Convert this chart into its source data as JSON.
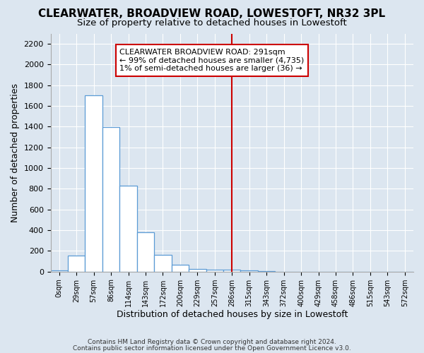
{
  "title": "CLEARWATER, BROADVIEW ROAD, LOWESTOFT, NR32 3PL",
  "subtitle": "Size of property relative to detached houses in Lowestoft",
  "xlabel": "Distribution of detached houses by size in Lowestoft",
  "ylabel": "Number of detached properties",
  "footer1": "Contains HM Land Registry data © Crown copyright and database right 2024.",
  "footer2": "Contains public sector information licensed under the Open Government Licence v3.0.",
  "bin_labels": [
    "0sqm",
    "29sqm",
    "57sqm",
    "86sqm",
    "114sqm",
    "143sqm",
    "172sqm",
    "200sqm",
    "229sqm",
    "257sqm",
    "286sqm",
    "315sqm",
    "343sqm",
    "372sqm",
    "400sqm",
    "429sqm",
    "458sqm",
    "486sqm",
    "515sqm",
    "543sqm",
    "572sqm"
  ],
  "bar_values": [
    15,
    155,
    1700,
    1395,
    830,
    380,
    160,
    65,
    25,
    20,
    20,
    15,
    5,
    0,
    0,
    0,
    0,
    0,
    0,
    0,
    0
  ],
  "highlight_index": 10,
  "bar_color": "#ffffff",
  "bar_edge_color": "#5b9bd5",
  "highlight_line_color": "#cc0000",
  "annotation_line1": "CLEARWATER BROADVIEW ROAD: 291sqm",
  "annotation_line2": "← 99% of detached houses are smaller (4,735)",
  "annotation_line3": "1% of semi-detached houses are larger (36) →",
  "annotation_box_color": "#ffffff",
  "annotation_box_edge": "#cc0000",
  "ylim": [
    0,
    2300
  ],
  "yticks": [
    0,
    200,
    400,
    600,
    800,
    1000,
    1200,
    1400,
    1600,
    1800,
    2000,
    2200
  ],
  "background_color": "#dce6f0",
  "plot_background": "#dce6f0",
  "grid_color": "#ffffff",
  "title_fontsize": 11,
  "subtitle_fontsize": 9.5,
  "annotation_fontsize": 8,
  "xlabel_fontsize": 9,
  "ylabel_fontsize": 9
}
